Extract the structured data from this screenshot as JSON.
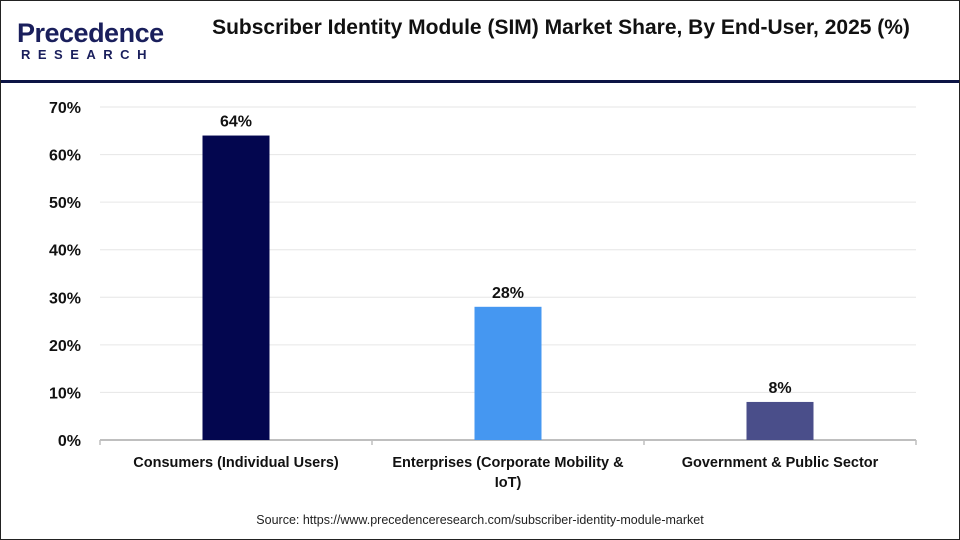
{
  "logo": {
    "line1": "Precedence",
    "line2": "RESEARCH"
  },
  "chart_data": {
    "type": "bar",
    "title": "Subscriber Identity Module (SIM) Market Share, By End-User, 2025 (%)",
    "categories": [
      "Consumers (Individual Users)",
      "Enterprises (Corporate Mobility & IoT)",
      "Government & Public Sector"
    ],
    "category_lines": [
      [
        "Consumers (Individual Users)"
      ],
      [
        "Enterprises (Corporate Mobility &",
        "IoT)"
      ],
      [
        "Government & Public Sector"
      ]
    ],
    "values": [
      64,
      28,
      8
    ],
    "data_labels": [
      "64%",
      "28%",
      "8%"
    ],
    "colors": [
      "#03064f",
      "#4597f1",
      "#4a4e8a"
    ],
    "ylim": [
      0,
      70
    ],
    "yticks": [
      0,
      10,
      20,
      30,
      40,
      50,
      60,
      70
    ],
    "ytick_labels": [
      "0%",
      "10%",
      "20%",
      "30%",
      "40%",
      "50%",
      "60%",
      "70%"
    ],
    "grid": true,
    "xlabel": "",
    "ylabel": ""
  },
  "source": "Source: https://www.precedenceresearch.com/subscriber-identity-module-market"
}
